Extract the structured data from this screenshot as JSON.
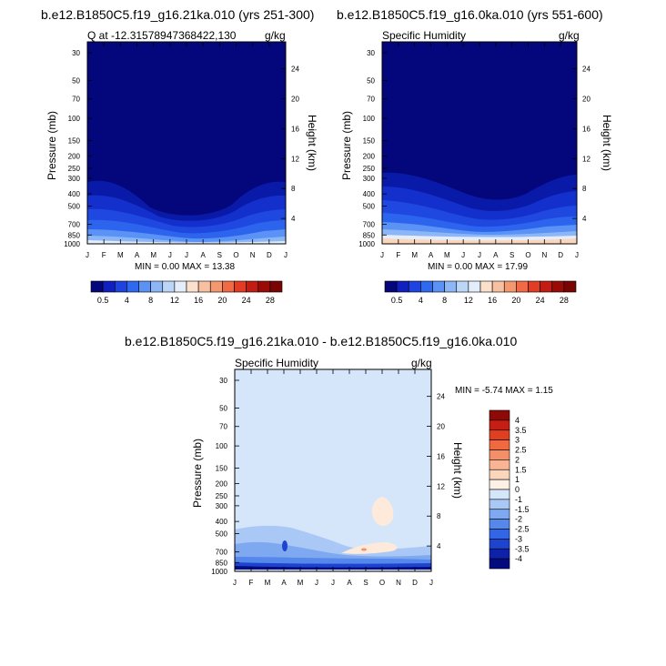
{
  "panels": [
    {
      "title": "b.e12.B1850C5.f19_g16.21ka.010 (yrs 251-300)",
      "left_label": "Q at -12.31578947368422,130",
      "right_label": "g/kg",
      "min_max": "MIN =   0.00 MAX =  13.38",
      "ylabel": "Pressure (mb)",
      "ylabel_right": "Height (km)"
    },
    {
      "title": "b.e12.B1850C5.f19_g16.0ka.010 (yrs 551-600)",
      "left_label": "Specific Humidity",
      "right_label": "g/kg",
      "min_max": "MIN =   0.00 MAX =  17.99",
      "ylabel": "Pressure (mb)",
      "ylabel_right": "Height (km)"
    },
    {
      "title": "b.e12.B1850C5.f19_g16.21ka.010 - b.e12.B1850C5.f19_g16.0ka.010",
      "left_label": "Specific Humidity",
      "right_label": "g/kg",
      "min_max": "MIN =  -5.74 MAX =   1.15",
      "ylabel": "Pressure (mb)",
      "ylabel_right": "Height (km)"
    }
  ],
  "chart_data": [
    {
      "type": "heatmap",
      "title": "b.e12.B1850C5.f19_g16.21ka.010 (yrs 251-300)",
      "x_ticks": [
        "J",
        "F",
        "M",
        "A",
        "M",
        "J",
        "J",
        "A",
        "S",
        "O",
        "N",
        "D",
        "J"
      ],
      "pressure_ticks": [
        30,
        50,
        70,
        100,
        150,
        200,
        250,
        300,
        400,
        500,
        700,
        850,
        1000
      ],
      "height_ticks": [
        24,
        20,
        16,
        12,
        8,
        4
      ],
      "colorbar_labels": [
        "0.5",
        "4",
        "8",
        "12",
        "16",
        "20",
        "24",
        "28"
      ],
      "colorbar_colors": [
        "#04067c",
        "#1020c0",
        "#1f43e0",
        "#2d6af0",
        "#5a92f5",
        "#8db6f7",
        "#bcd6f8",
        "#e4eefb",
        "#fbe0cc",
        "#f8bfa0",
        "#f49870",
        "#ef6a45",
        "#e23d24",
        "#c31c12",
        "#9a0b08",
        "#7a0404"
      ],
      "background_color": "#04067c",
      "min": 0.0,
      "max": 13.38
    },
    {
      "type": "heatmap",
      "title": "b.e12.B1850C5.f19_g16.0ka.010 (yrs 551-600)",
      "x_ticks": [
        "J",
        "F",
        "M",
        "A",
        "M",
        "J",
        "J",
        "A",
        "S",
        "O",
        "N",
        "D",
        "J"
      ],
      "pressure_ticks": [
        30,
        50,
        70,
        100,
        150,
        200,
        250,
        300,
        400,
        500,
        700,
        850,
        1000
      ],
      "height_ticks": [
        24,
        20,
        16,
        12,
        8,
        4
      ],
      "colorbar_labels": [
        "0.5",
        "4",
        "8",
        "12",
        "16",
        "20",
        "24",
        "28"
      ],
      "background_color": "#04067c",
      "min": 0.0,
      "max": 17.99
    },
    {
      "type": "heatmap",
      "title": "b.e12.B1850C5.f19_g16.21ka.010 - b.e12.B1850C5.f19_g16.0ka.010",
      "x_ticks": [
        "J",
        "F",
        "M",
        "A",
        "M",
        "J",
        "J",
        "A",
        "S",
        "O",
        "N",
        "D",
        "J"
      ],
      "pressure_ticks": [
        30,
        50,
        70,
        100,
        150,
        200,
        250,
        300,
        400,
        500,
        700,
        850,
        1000
      ],
      "height_ticks": [
        24,
        20,
        16,
        12,
        8,
        4
      ],
      "colorbar_labels": [
        "4",
        "3.5",
        "3",
        "2.5",
        "2",
        "1.5",
        "1",
        "0",
        "-1",
        "-1.5",
        "-2",
        "-2.5",
        "-3",
        "-3.5",
        "-4"
      ],
      "colorbar_colors": [
        "#8f0a06",
        "#c41f12",
        "#e0401f",
        "#ef6a40",
        "#f58f68",
        "#f8b494",
        "#fbd6bd",
        "#fdf0e4",
        "#d5e6fa",
        "#a9c8f5",
        "#7ea9f1",
        "#5688ec",
        "#3366e4",
        "#1c44cf",
        "#0d22a8",
        "#040a80"
      ],
      "background_color": "#d5e6fa",
      "min": -5.74,
      "max": 1.15
    }
  ]
}
